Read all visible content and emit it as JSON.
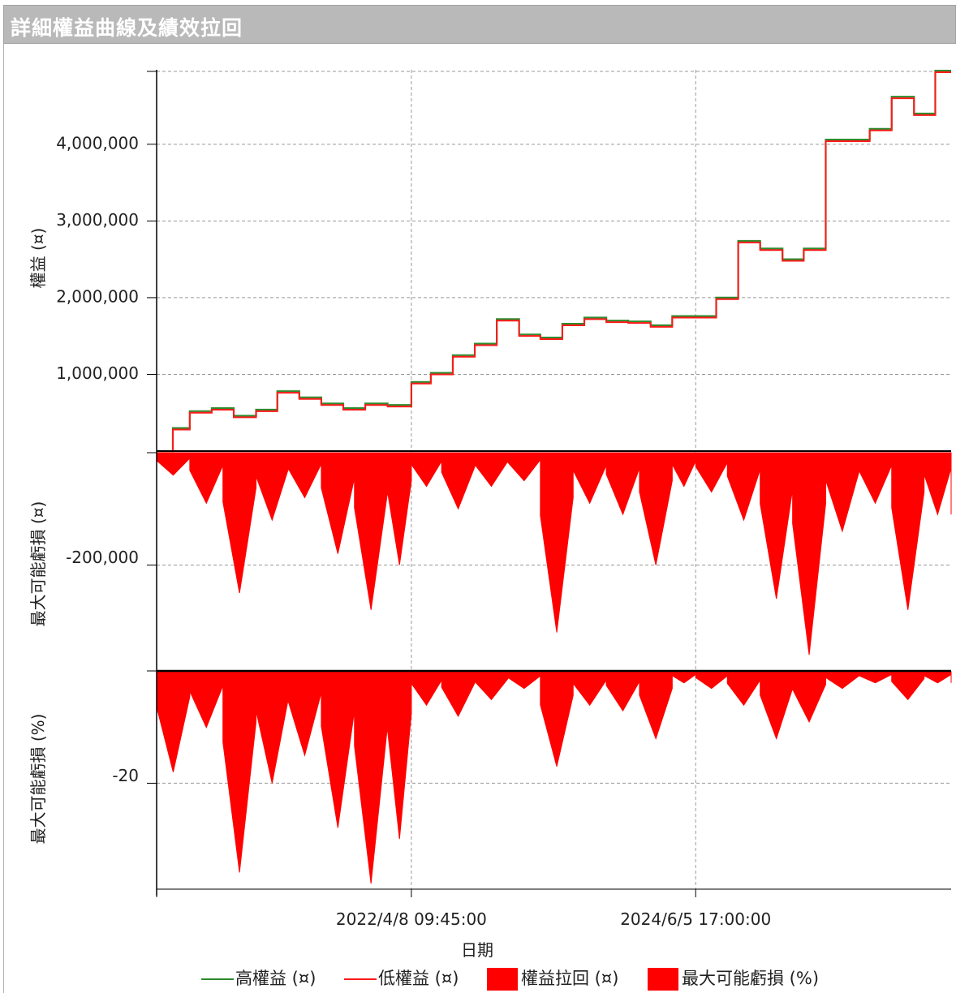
{
  "window": {
    "title": "詳細權益曲線及績效拉回"
  },
  "colors": {
    "high": "#2e8b2e",
    "low": "#ff1a1a",
    "fill": "#ff0000",
    "grid": "#9a9a9a"
  },
  "chart_data": [
    {
      "type": "line",
      "ylabel": "權益 (¤)",
      "yticks": [
        "1,000,000",
        "2,000,000",
        "3,000,000",
        "4,000,000"
      ],
      "x": [
        "2020-05-01",
        "2020-06-15",
        "2020-08-01",
        "2020-10-01",
        "2020-12-01",
        "2021-02-01",
        "2021-04-01",
        "2021-06-01",
        "2021-08-01",
        "2021-10-01",
        "2021-12-01",
        "2022-02-01",
        "2022-04-08",
        "2022-06-01",
        "2022-08-01",
        "2022-10-01",
        "2022-12-01",
        "2023-02-01",
        "2023-04-01",
        "2023-06-01",
        "2023-08-01",
        "2023-10-01",
        "2023-12-01",
        "2024-02-01",
        "2024-04-01",
        "2024-06-05",
        "2024-08-01",
        "2024-10-01",
        "2024-12-01",
        "2025-02-01",
        "2025-04-01",
        "2025-06-01",
        "2025-08-01",
        "2025-10-01",
        "2025-12-01",
        "2026-02-01",
        "2026-04-01",
        "2026-05-15"
      ],
      "series": [
        {
          "name": "高權益 (¤)",
          "values": [
            0,
            300000,
            520000,
            560000,
            460000,
            540000,
            780000,
            700000,
            620000,
            560000,
            620000,
            600000,
            900000,
            1020000,
            1250000,
            1400000,
            1720000,
            1520000,
            1480000,
            1660000,
            1740000,
            1700000,
            1690000,
            1640000,
            1760000,
            1760000,
            2000000,
            2740000,
            2640000,
            2500000,
            2640000,
            4060000,
            4060000,
            4200000,
            4620000,
            4400000,
            4960000,
            4960000
          ]
        },
        {
          "name": "低權益 (¤)",
          "values": [
            0,
            280000,
            500000,
            540000,
            440000,
            520000,
            760000,
            680000,
            600000,
            540000,
            600000,
            580000,
            880000,
            1000000,
            1230000,
            1380000,
            1700000,
            1500000,
            1460000,
            1640000,
            1720000,
            1680000,
            1670000,
            1620000,
            1740000,
            1740000,
            1980000,
            2720000,
            2620000,
            2480000,
            2620000,
            4040000,
            4040000,
            4180000,
            4600000,
            4380000,
            4940000,
            4940000
          ]
        }
      ]
    },
    {
      "type": "area",
      "ylabel": "最大可能虧損 (¤)",
      "series_name": "權益拉回 (¤)",
      "yticks": [
        "-200,000"
      ],
      "x": [
        "2020-05-01",
        "2020-08-01",
        "2020-11-01",
        "2021-02-01",
        "2021-05-01",
        "2021-08-01",
        "2021-11-01",
        "2022-02-01",
        "2022-04-08",
        "2022-07-01",
        "2022-10-01",
        "2023-01-01",
        "2023-04-01",
        "2023-07-01",
        "2023-10-01",
        "2024-01-01",
        "2024-04-01",
        "2024-06-05",
        "2024-09-01",
        "2024-12-01",
        "2025-03-01",
        "2025-06-01",
        "2025-09-01",
        "2025-12-01",
        "2026-03-01",
        "2026-05-15"
      ],
      "values": [
        -40000,
        -90000,
        -250000,
        -120000,
        -80000,
        -180000,
        -280000,
        -200000,
        -60000,
        -100000,
        -60000,
        -50000,
        -320000,
        -90000,
        -110000,
        -200000,
        -60000,
        -70000,
        -120000,
        -260000,
        -360000,
        -140000,
        -90000,
        -280000,
        -110000,
        -110000
      ]
    },
    {
      "type": "area",
      "ylabel": "最大可能虧損 (%)",
      "series_name": "最大可能虧損 (%)",
      "yticks": [
        "-20"
      ],
      "x": [
        "2020-05-01",
        "2020-08-01",
        "2020-11-01",
        "2021-02-01",
        "2021-05-01",
        "2021-08-01",
        "2021-11-01",
        "2022-02-01",
        "2022-04-08",
        "2022-07-01",
        "2022-10-01",
        "2023-01-01",
        "2023-04-01",
        "2023-07-01",
        "2023-10-01",
        "2024-01-01",
        "2024-04-01",
        "2024-06-05",
        "2024-09-01",
        "2024-12-01",
        "2025-03-01",
        "2025-06-01",
        "2025-09-01",
        "2025-12-01",
        "2026-03-01",
        "2026-05-15"
      ],
      "values": [
        -18,
        -10,
        -36,
        -20,
        -15,
        -28,
        -38,
        -30,
        -6,
        -8,
        -5,
        -3,
        -17,
        -6,
        -7,
        -12,
        -2,
        -3,
        -6,
        -12,
        -9,
        -3,
        -2,
        -5,
        -2,
        -2
      ]
    }
  ],
  "xaxis": {
    "label": "日期",
    "ticks": [
      "2022/4/8 09:45:00",
      "2024/6/5 17:00:00"
    ]
  },
  "legend": [
    {
      "label": "高權益 (¤)",
      "kind": "line",
      "color": "#2e8b2e"
    },
    {
      "label": "低權益 (¤)",
      "kind": "line",
      "color": "#ff1a1a"
    },
    {
      "label": "權益拉回 (¤)",
      "kind": "box",
      "color": "#ff0000"
    },
    {
      "label": "最大可能虧損 (%)",
      "kind": "box",
      "color": "#ff0000"
    }
  ]
}
